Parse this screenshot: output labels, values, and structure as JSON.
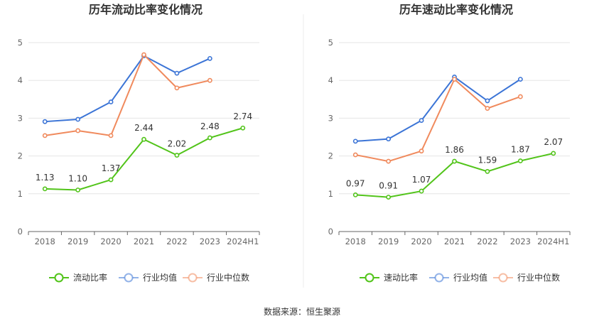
{
  "source": "数据来源：恒生聚源",
  "colors": {
    "company": "#52c41a",
    "industry_avg": "#3b74d6",
    "industry_median": "#f08a5d"
  },
  "chart_data": [
    {
      "type": "line",
      "title": "历年流动比率变化情况",
      "categories": [
        "2018",
        "2019",
        "2020",
        "2021",
        "2022",
        "2023",
        "2024H1"
      ],
      "ylim": [
        0,
        5
      ],
      "yticks": [
        0,
        1,
        2,
        3,
        4,
        5
      ],
      "legend_position": "bottom",
      "series": [
        {
          "name": "流动比率",
          "key": "company",
          "labels": true,
          "values": [
            1.13,
            1.1,
            1.37,
            2.44,
            2.02,
            2.48,
            2.74
          ]
        },
        {
          "name": "行业均值",
          "key": "industry_avg",
          "labels": false,
          "values": [
            2.91,
            2.97,
            3.43,
            4.65,
            4.19,
            4.58,
            null
          ]
        },
        {
          "name": "行业中位数",
          "key": "industry_median",
          "labels": false,
          "values": [
            2.54,
            2.67,
            2.54,
            4.68,
            3.8,
            4.0,
            null
          ]
        }
      ]
    },
    {
      "type": "line",
      "title": "历年速动比率变化情况",
      "categories": [
        "2018",
        "2019",
        "2020",
        "2021",
        "2022",
        "2023",
        "2024H1"
      ],
      "ylim": [
        0,
        5
      ],
      "yticks": [
        0,
        1,
        2,
        3,
        4,
        5
      ],
      "legend_position": "bottom",
      "series": [
        {
          "name": "速动比率",
          "key": "company",
          "labels": true,
          "values": [
            0.97,
            0.91,
            1.07,
            1.86,
            1.59,
            1.87,
            2.07
          ]
        },
        {
          "name": "行业均值",
          "key": "industry_avg",
          "labels": false,
          "values": [
            2.39,
            2.45,
            2.94,
            4.09,
            3.46,
            4.03,
            null
          ]
        },
        {
          "name": "行业中位数",
          "key": "industry_median",
          "labels": false,
          "values": [
            2.03,
            1.86,
            2.13,
            4.03,
            3.26,
            3.57,
            null
          ]
        }
      ]
    }
  ]
}
